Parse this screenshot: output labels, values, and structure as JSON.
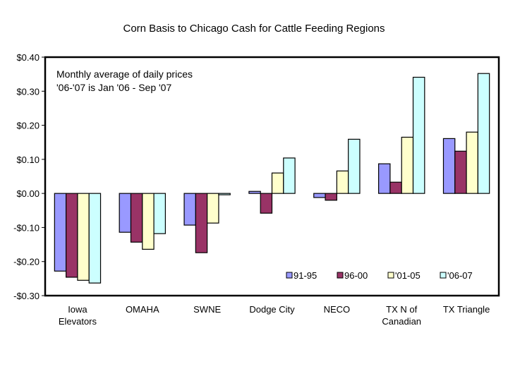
{
  "chart_data": {
    "type": "bar",
    "title": "Corn Basis to Chicago Cash for Cattle Feeding Regions",
    "annotation": [
      "Monthly average of daily prices",
      "'06-'07 is Jan '06 - Sep '07"
    ],
    "xlabel": "",
    "ylabel": "",
    "ylim": [
      -0.3,
      0.4
    ],
    "yticks": [
      0.4,
      0.3,
      0.2,
      0.1,
      0.0,
      -0.1,
      -0.2,
      -0.3
    ],
    "ytick_labels": [
      "$0.40",
      "$0.30",
      "$0.20",
      "$0.10",
      "$0.00",
      "-$0.10",
      "-$0.20",
      "-$0.30"
    ],
    "grid": false,
    "legend_position": "bottom-right",
    "categories": [
      [
        "Iowa",
        "Elevators"
      ],
      [
        "OMAHA"
      ],
      [
        "SWNE"
      ],
      [
        "Dodge City"
      ],
      [
        "NECO"
      ],
      [
        "TX N of",
        "Canadian"
      ],
      [
        "TX Triangle"
      ]
    ],
    "series": [
      {
        "name": "91-95",
        "color": "#9999ff",
        "values": [
          -0.228,
          -0.114,
          -0.093,
          0.006,
          -0.012,
          0.087,
          0.161
        ]
      },
      {
        "name": "96-00",
        "color": "#993366",
        "values": [
          -0.246,
          -0.143,
          -0.174,
          -0.058,
          -0.02,
          0.033,
          0.124
        ]
      },
      {
        "name": "'01-05",
        "color": "#ffffcc",
        "values": [
          -0.255,
          -0.164,
          -0.087,
          0.06,
          0.066,
          0.165,
          0.18
        ]
      },
      {
        "name": "'06-07",
        "color": "#ccffff",
        "values": [
          -0.263,
          -0.118,
          -0.004,
          0.104,
          0.159,
          0.341,
          0.352
        ]
      }
    ]
  }
}
